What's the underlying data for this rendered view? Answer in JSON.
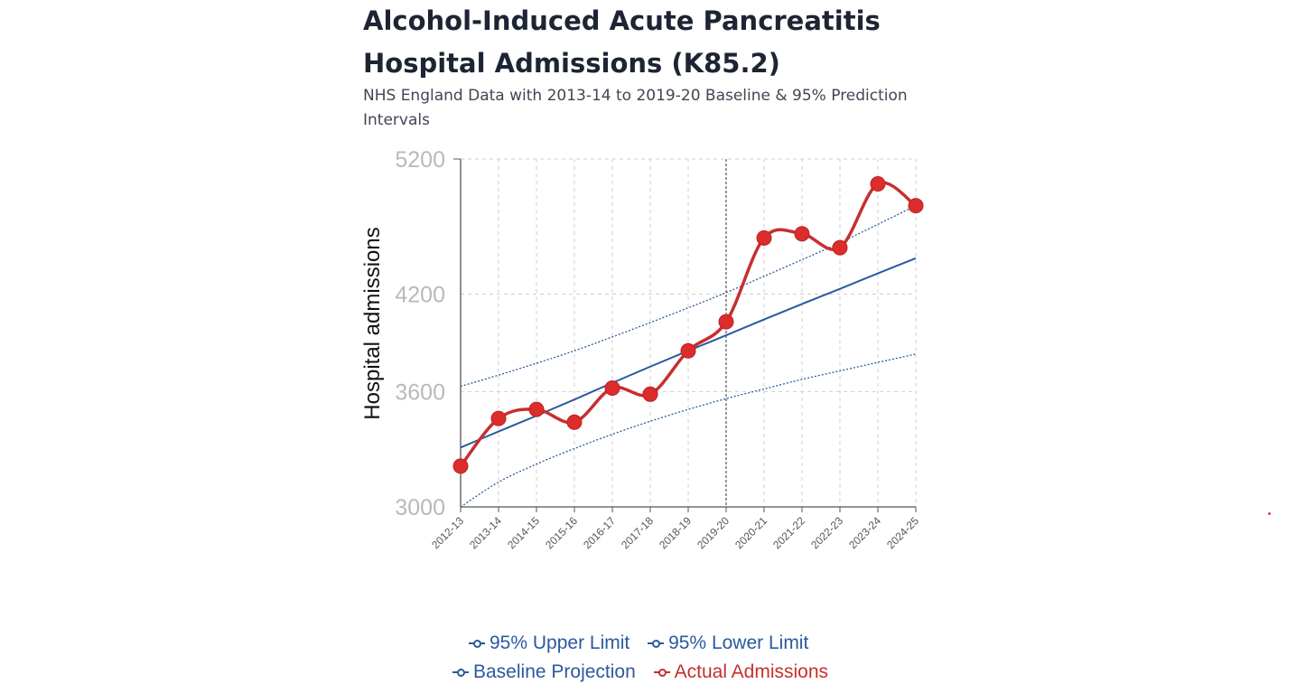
{
  "header": {
    "title_line1": "Alcohol-Induced Acute Pancreatitis",
    "title_line2": "Hospital Admissions (K85.2)",
    "subtitle_line1": "NHS England Data with 2013-14 to 2019-20 Baseline & 95% Prediction",
    "subtitle_line2": "Intervals"
  },
  "chart_data": {
    "type": "line",
    "title": "Alcohol-Induced Acute Pancreatitis Hospital Admissions (K85.2)",
    "subtitle": "NHS England Data with 2013-14 to 2019-20 Baseline & 95% Prediction Intervals",
    "ylabel": "Hospital admissions",
    "xlabel": "",
    "y_scale": "log",
    "ylim": [
      3000,
      5200
    ],
    "yticks": [
      "5200",
      "4200",
      "3600",
      "3000"
    ],
    "ytick_values": [
      5200,
      4200,
      3600,
      3000
    ],
    "categories": [
      "2012-13",
      "2013-14",
      "2014-15",
      "2015-16",
      "2016-17",
      "2017-18",
      "2018-19",
      "2019-20",
      "2020-21",
      "2021-22",
      "2022-23",
      "2023-24",
      "2024-25"
    ],
    "baseline_end_category": "2019-20",
    "grid": true,
    "legend_position": "bottom",
    "series": [
      {
        "name": "95% Upper Limit",
        "color": "#2a5a9e",
        "style": "dotted",
        "values": [
          3630,
          3695,
          3765,
          3840,
          3925,
          4015,
          4110,
          4210,
          4320,
          4435,
          4555,
          4690,
          4830
        ]
      },
      {
        "name": "95% Lower Limit",
        "color": "#2a5a9e",
        "style": "dotted",
        "values": [
          3000,
          3120,
          3210,
          3290,
          3365,
          3435,
          3500,
          3560,
          3615,
          3670,
          3720,
          3770,
          3820
        ]
      },
      {
        "name": "Baseline Projection",
        "color": "#2a5a9e",
        "style": "solid",
        "values": [
          3295,
          3380,
          3465,
          3555,
          3650,
          3745,
          3840,
          3935,
          4035,
          4135,
          4235,
          4340,
          4445
        ]
      },
      {
        "name": "Actual Admissions",
        "color": "#c62f2f",
        "style": "solid-markers",
        "values": [
          3200,
          3450,
          3500,
          3430,
          3620,
          3585,
          3840,
          4020,
          4590,
          4620,
          4520,
          5000,
          4830
        ]
      }
    ]
  }
}
